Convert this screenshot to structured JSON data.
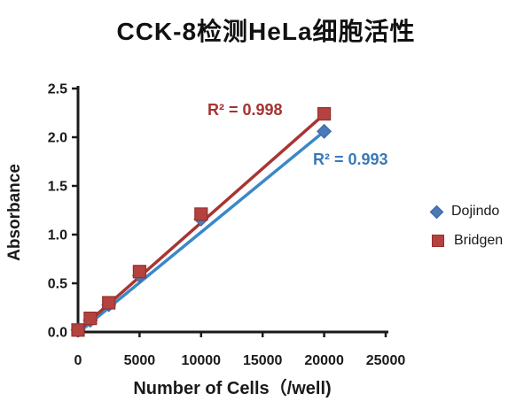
{
  "title": "CCK-8检测HeLa细胞活性",
  "chart_data": {
    "type": "scatter",
    "title": "CCK-8检测HeLa细胞活性",
    "xlabel": "Number of Cells（/well)",
    "ylabel": "Absorbance",
    "xlim": [
      0,
      25000
    ],
    "ylim": [
      0.0,
      2.5
    ],
    "grid": false,
    "legend_position": "right",
    "x_tick_labels": [
      "0",
      "5000",
      "10000",
      "15000",
      "20000",
      "25000"
    ],
    "x_tick_values": [
      0,
      5000,
      10000,
      15000,
      20000,
      25000
    ],
    "y_tick_labels": [
      "0.0",
      "0.5",
      "1.0",
      "1.5",
      "2.0",
      "2.5"
    ],
    "y_tick_values": [
      0,
      0.5,
      1.0,
      1.5,
      2.0,
      2.5
    ],
    "series": [
      {
        "name": "Dojindo",
        "marker": "diamond",
        "marker_color": "#4b79b7",
        "marker_edge_color": "#3a67a5",
        "line_color": "#3a88c8",
        "annotation_color": "#3a79b8",
        "r_squared": 0.993,
        "x": [
          0,
          1000,
          2500,
          5000,
          10000,
          20000
        ],
        "y": [
          0.02,
          0.12,
          0.28,
          0.58,
          1.16,
          2.06
        ],
        "trendline": {
          "x1": 100,
          "y1": 0.0,
          "x2": 20200,
          "y2": 2.08
        }
      },
      {
        "name": "Bridgen",
        "marker": "square",
        "marker_color": "#b4423f",
        "marker_edge_color": "#96302d",
        "line_color": "#a83533",
        "annotation_color": "#a53331",
        "r_squared": 0.998,
        "x": [
          0,
          1000,
          2500,
          5000,
          10000,
          20000
        ],
        "y": [
          0.02,
          0.14,
          0.3,
          0.62,
          1.21,
          2.24
        ],
        "trendline": {
          "x1": 0,
          "y1": 0.01,
          "x2": 20050,
          "y2": 2.24
        }
      }
    ],
    "annotations": {
      "bridgen_r2": "R² = 0.998",
      "dojindo_r2": "R² = 0.993"
    }
  },
  "legend": {
    "items": [
      {
        "label": "Dojindo"
      },
      {
        "label": "Bridgen"
      }
    ]
  }
}
